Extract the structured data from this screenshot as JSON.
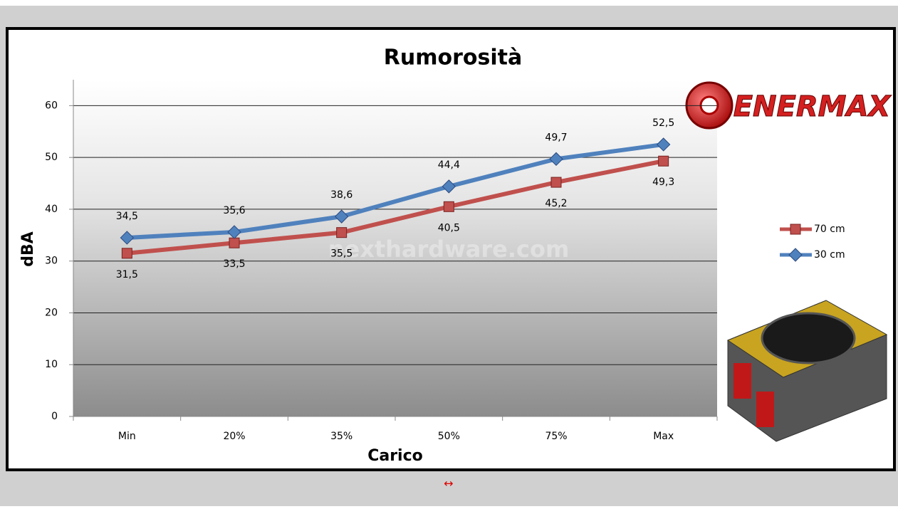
{
  "chart_data": {
    "type": "line",
    "title": "Rumorosità",
    "x_label": "Carico",
    "y_label": "dBA",
    "categories": [
      "Min",
      "20%",
      "35%",
      "50%",
      "75%",
      "Max"
    ],
    "series": [
      {
        "name": "70 cm",
        "color": "#c0504d",
        "marker": "square",
        "values": [
          31.5,
          33.5,
          35.5,
          40.5,
          45.2,
          49.3
        ],
        "value_labels": [
          "31,5",
          "33,5",
          "35,5",
          "40,5",
          "45,2",
          "49,3"
        ]
      },
      {
        "name": "30 cm",
        "color": "#4f81bd",
        "marker": "diamond",
        "values": [
          34.5,
          35.6,
          38.6,
          44.4,
          49.7,
          52.5
        ],
        "value_labels": [
          "34,5",
          "35,6",
          "38,6",
          "44,4",
          "49,7",
          "52,5"
        ]
      }
    ],
    "ylim": [
      0,
      65
    ],
    "yticks": [
      0,
      10,
      20,
      30,
      40,
      50,
      60
    ],
    "grid": true,
    "legend": "right"
  },
  "page": {
    "watermark": "nexthardware.com",
    "logo": "ENERMAX",
    "link": "↔"
  }
}
